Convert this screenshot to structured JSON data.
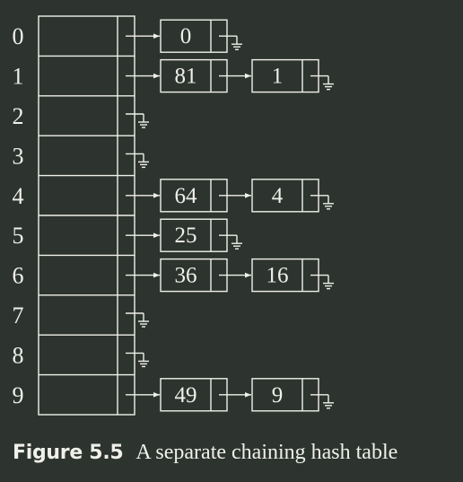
{
  "colors": {
    "background": "#2d342f",
    "stroke": "#f0f0ea",
    "text": "#f0f0ea"
  },
  "table": {
    "indices": [
      "0",
      "1",
      "2",
      "3",
      "4",
      "5",
      "6",
      "7",
      "8",
      "9"
    ],
    "chains": [
      [
        "0"
      ],
      [
        "81",
        "1"
      ],
      [],
      [],
      [
        "64",
        "4"
      ],
      [
        "25"
      ],
      [
        "36",
        "16"
      ],
      [],
      [],
      [
        "49",
        "9"
      ]
    ]
  },
  "caption": {
    "label": "Figure 5.5",
    "text": "A separate chaining hash table"
  }
}
